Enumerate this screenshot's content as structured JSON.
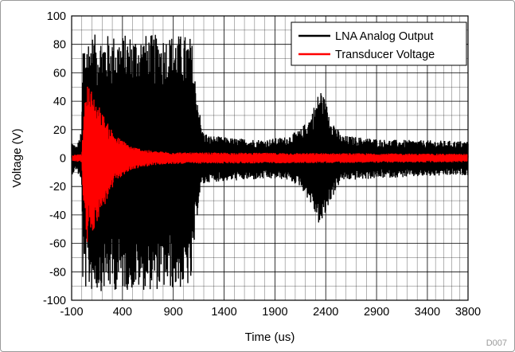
{
  "chart_data": {
    "type": "line",
    "title": "",
    "xlabel": "Time (us)",
    "ylabel": "Voltage (V)",
    "xlim": [
      -100,
      3800
    ],
    "ylim": [
      -100,
      100
    ],
    "x_ticks": [
      -100,
      400,
      900,
      1400,
      1900,
      2400,
      2900,
      3400,
      3800
    ],
    "x_tick_labels": [
      "-100",
      "400",
      "900",
      "1400",
      "1900",
      "2400",
      "2900",
      "3400",
      "3800"
    ],
    "y_ticks": [
      -100,
      -80,
      -60,
      -40,
      -20,
      0,
      20,
      40,
      60,
      80,
      100
    ],
    "y_tick_labels": [
      "-100",
      "-80",
      "-60",
      "-40",
      "-20",
      "0",
      "20",
      "40",
      "60",
      "80",
      "100"
    ],
    "grid": true,
    "legend_position": "top-right",
    "series": [
      {
        "name": "LNA Analog Output",
        "color": "#000000",
        "envelope": [
          {
            "x": -100,
            "upper": 12,
            "lower": -12
          },
          {
            "x": -50,
            "upper": 8,
            "lower": -8
          },
          {
            "x": 0,
            "upper": 20,
            "lower": -20
          },
          {
            "x": 10,
            "upper": 85,
            "lower": -92
          },
          {
            "x": 100,
            "upper": 87,
            "lower": -94
          },
          {
            "x": 400,
            "upper": 87,
            "lower": -93
          },
          {
            "x": 700,
            "upper": 87,
            "lower": -93
          },
          {
            "x": 1000,
            "upper": 87,
            "lower": -92
          },
          {
            "x": 1080,
            "upper": 85,
            "lower": -90
          },
          {
            "x": 1110,
            "upper": 60,
            "lower": -60
          },
          {
            "x": 1150,
            "upper": 40,
            "lower": -30
          },
          {
            "x": 1180,
            "upper": 20,
            "lower": -20
          },
          {
            "x": 1250,
            "upper": 16,
            "lower": -17
          },
          {
            "x": 1500,
            "upper": 14,
            "lower": -16
          },
          {
            "x": 1800,
            "upper": 13,
            "lower": -15
          },
          {
            "x": 2000,
            "upper": 15,
            "lower": -15
          },
          {
            "x": 2150,
            "upper": 20,
            "lower": -20
          },
          {
            "x": 2250,
            "upper": 30,
            "lower": -32
          },
          {
            "x": 2350,
            "upper": 50,
            "lower": -50
          },
          {
            "x": 2450,
            "upper": 30,
            "lower": -30
          },
          {
            "x": 2550,
            "upper": 16,
            "lower": -16
          },
          {
            "x": 3000,
            "upper": 13,
            "lower": -14
          },
          {
            "x": 3800,
            "upper": 12,
            "lower": -12
          }
        ]
      },
      {
        "name": "Transducer Voltage",
        "color": "#ff0000",
        "envelope": [
          {
            "x": -100,
            "upper": 2,
            "lower": -2
          },
          {
            "x": 0,
            "upper": 3,
            "lower": -3
          },
          {
            "x": 20,
            "upper": 30,
            "lower": -40
          },
          {
            "x": 50,
            "upper": 55,
            "lower": -62
          },
          {
            "x": 150,
            "upper": 40,
            "lower": -45
          },
          {
            "x": 250,
            "upper": 25,
            "lower": -30
          },
          {
            "x": 350,
            "upper": 15,
            "lower": -15
          },
          {
            "x": 500,
            "upper": 8,
            "lower": -8
          },
          {
            "x": 700,
            "upper": 5,
            "lower": -5
          },
          {
            "x": 1000,
            "upper": 4,
            "lower": -4
          },
          {
            "x": 3800,
            "upper": 3,
            "lower": -3
          }
        ]
      }
    ]
  },
  "corner_tag": "D007"
}
